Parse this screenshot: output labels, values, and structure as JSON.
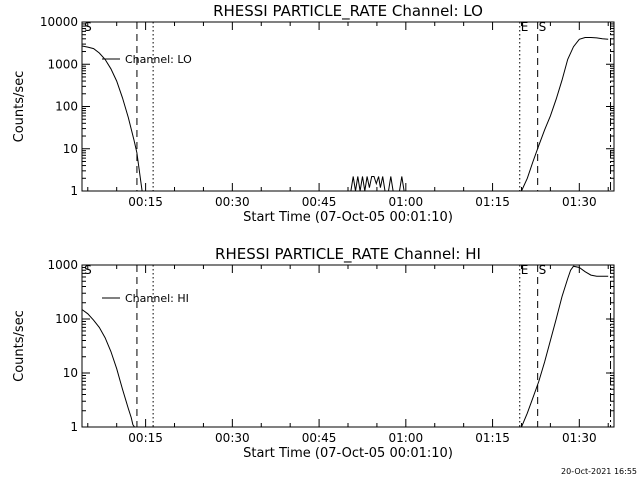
{
  "footer_timestamp": "20-Oct-2021 16:55",
  "colors": {
    "background": "#ffffff",
    "foreground": "#000000"
  },
  "chart_data": [
    {
      "type": "line",
      "title": "RHESSI PARTICLE_RATE Channel: LO",
      "xlabel": "Start Time (07-Oct-05 00:01:10)",
      "ylabel": "Counts/sec",
      "y_scale": "log",
      "ylim": [
        1,
        10000
      ],
      "xlim": [
        4,
        96
      ],
      "x_units": "minutes after 00:00",
      "x_ticks": [
        {
          "value": 15,
          "label": "00:15"
        },
        {
          "value": 30,
          "label": "00:30"
        },
        {
          "value": 45,
          "label": "00:45"
        },
        {
          "value": 60,
          "label": "01:00"
        },
        {
          "value": 75,
          "label": "01:15"
        },
        {
          "value": 90,
          "label": "01:30"
        }
      ],
      "y_ticks": [
        {
          "value": 1,
          "label": "1"
        },
        {
          "value": 10,
          "label": "10"
        },
        {
          "value": 100,
          "label": "100"
        },
        {
          "value": 1000,
          "label": "1000"
        },
        {
          "value": 10000,
          "label": "10000"
        }
      ],
      "legend": {
        "placement": "top-left",
        "label": "Channel: LO"
      },
      "markers": [
        {
          "x": 4.2,
          "label": "S",
          "style": "none"
        },
        {
          "x": 13.5,
          "label": "",
          "style": "dashed"
        },
        {
          "x": 16.3,
          "label": "",
          "style": "dotted"
        },
        {
          "x": 79.7,
          "label": "E",
          "style": "dotted"
        },
        {
          "x": 82.8,
          "label": "S",
          "style": "dashed"
        },
        {
          "x": 95.4,
          "label": "",
          "style": "dashdot"
        }
      ],
      "series": [
        {
          "segments": [
            {
              "x": [
                4,
                5,
                6,
                7,
                8,
                9,
                10,
                11,
                12,
                13,
                13.5,
                14,
                14.4
              ],
              "y": [
                2700,
                2550,
                2350,
                1850,
                1300,
                780,
                400,
                160,
                55,
                16,
                8,
                2.5,
                1
              ]
            },
            {
              "x": [
                50.5,
                50.9,
                51.3,
                51.7,
                52.1,
                52.5,
                52.9,
                53.3,
                53.7,
                54.1,
                54.5,
                54.9,
                55.3,
                55.6,
                56.0,
                56.4
              ],
              "y": [
                1,
                2.2,
                1,
                2.2,
                1,
                2.2,
                1,
                2.2,
                1.2,
                2.2,
                2.2,
                1.5,
                2.2,
                1.2,
                2.2,
                1
              ]
            },
            {
              "x": [
                57.0,
                57.4,
                57.8
              ],
              "y": [
                1,
                2.2,
                1
              ]
            },
            {
              "x": [
                58.9,
                59.3,
                59.7
              ],
              "y": [
                1,
                2.2,
                1
              ]
            },
            {
              "x": [
                80,
                81,
                82,
                83,
                84,
                85,
                86,
                87,
                88,
                89,
                90,
                91,
                92,
                93,
                94,
                95
              ],
              "y": [
                1,
                2,
                5,
                12,
                28,
                60,
                150,
                420,
                1300,
                2600,
                3900,
                4300,
                4300,
                4200,
                4000,
                3900
              ]
            }
          ]
        }
      ]
    },
    {
      "type": "line",
      "title": "RHESSI PARTICLE_RATE Channel: HI",
      "xlabel": "Start Time (07-Oct-05 00:01:10)",
      "ylabel": "Counts/sec",
      "y_scale": "log",
      "ylim": [
        1,
        1000
      ],
      "xlim": [
        4,
        96
      ],
      "x_units": "minutes after 00:00",
      "x_ticks": [
        {
          "value": 15,
          "label": "00:15"
        },
        {
          "value": 30,
          "label": "00:30"
        },
        {
          "value": 45,
          "label": "00:45"
        },
        {
          "value": 60,
          "label": "01:00"
        },
        {
          "value": 75,
          "label": "01:15"
        },
        {
          "value": 90,
          "label": "01:30"
        }
      ],
      "y_ticks": [
        {
          "value": 1,
          "label": "1"
        },
        {
          "value": 10,
          "label": "10"
        },
        {
          "value": 100,
          "label": "100"
        },
        {
          "value": 1000,
          "label": "1000"
        }
      ],
      "legend": {
        "placement": "top-left",
        "label": "Channel: HI"
      },
      "markers": [
        {
          "x": 4.2,
          "label": "S",
          "style": "none"
        },
        {
          "x": 13.5,
          "label": "",
          "style": "dashed"
        },
        {
          "x": 16.3,
          "label": "",
          "style": "dotted"
        },
        {
          "x": 79.7,
          "label": "E",
          "style": "dotted"
        },
        {
          "x": 82.8,
          "label": "S",
          "style": "dashed"
        },
        {
          "x": 95.4,
          "label": "",
          "style": "dashdot"
        }
      ],
      "series": [
        {
          "segments": [
            {
              "x": [
                4,
                5,
                6,
                7,
                8,
                9,
                10,
                11,
                12,
                12.5,
                12.8,
                13.1
              ],
              "y": [
                150,
                125,
                95,
                70,
                45,
                25,
                12,
                5,
                2.2,
                1.5,
                1.1,
                1
              ]
            },
            {
              "x": [
                80,
                81,
                82,
                83,
                84,
                85,
                86,
                87,
                88,
                88.5,
                89,
                90,
                91,
                92,
                93,
                94,
                95
              ],
              "y": [
                1,
                1.8,
                3.5,
                7,
                16,
                40,
                100,
                260,
                560,
                800,
                950,
                900,
                750,
                650,
                620,
                620,
                620
              ]
            }
          ]
        }
      ]
    }
  ]
}
